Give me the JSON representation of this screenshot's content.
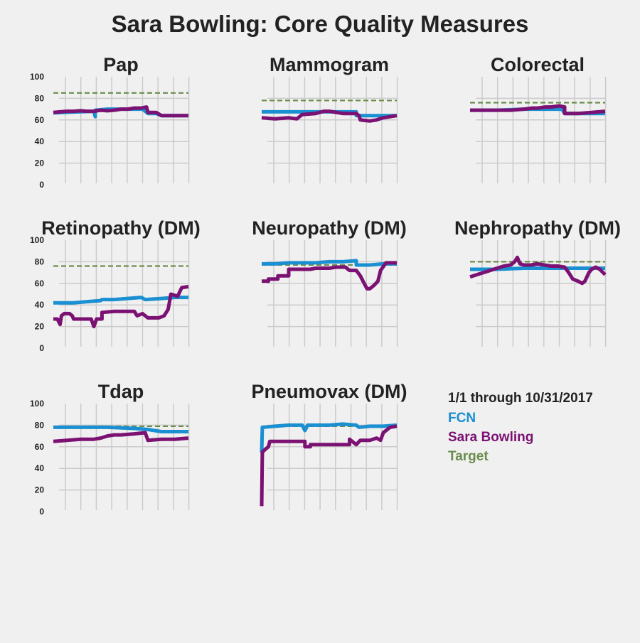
{
  "title": "Sara Bowling: Core Quality Measures",
  "legend": {
    "date_range": "1/1 through 10/31/2017",
    "entries": [
      {
        "label": "FCN",
        "color": "#1a8fd1"
      },
      {
        "label": "Sara Bowling",
        "color": "#7b1172"
      },
      {
        "label": "Target",
        "color": "#6b8c4c"
      }
    ]
  },
  "colors": {
    "fcn": "#1a8fd1",
    "sara": "#7b1172",
    "target": "#6b8c4c",
    "grid": "#cbcbcb",
    "background": "#f0f0f0"
  },
  "chart_data": [
    {
      "type": "line",
      "title": "Pap",
      "ylim": [
        0,
        100
      ],
      "yticks": [
        "0",
        "20",
        "40",
        "60",
        "80",
        "100"
      ],
      "xlim": [
        0,
        10
      ],
      "grid": true,
      "target": 85,
      "series": [
        {
          "name": "FCN",
          "x": [
            0,
            3.0,
            3.0,
            3.1,
            3.1,
            4.0,
            5.0,
            6.0,
            6.6,
            7.0,
            7.6,
            8.0,
            9.0,
            10.0
          ],
          "values": [
            66.5,
            68,
            68,
            63,
            69,
            70,
            70,
            70,
            70,
            66,
            66,
            64,
            64,
            64
          ]
        },
        {
          "name": "Sara Bowling",
          "x": [
            0,
            0.5,
            1.0,
            1.5,
            2.0,
            2.5,
            3.0,
            3.5,
            4.0,
            4.5,
            5.0,
            5.5,
            6.0,
            6.5,
            6.9,
            7.0,
            7.6,
            8.0,
            9.0,
            10.0
          ],
          "values": [
            67,
            67.5,
            68,
            68,
            68.5,
            68,
            68,
            69,
            68.5,
            69,
            70,
            70,
            71,
            71,
            72,
            67,
            67,
            64,
            64,
            64
          ]
        }
      ]
    },
    {
      "type": "line",
      "title": "Mammogram",
      "ylim": [
        0,
        100
      ],
      "yticks": [],
      "xlim": [
        0,
        10
      ],
      "grid": true,
      "target": 78,
      "series": [
        {
          "name": "FCN",
          "x": [
            0,
            7.0,
            7.0,
            10.0
          ],
          "values": [
            67.5,
            67.5,
            64,
            64
          ]
        },
        {
          "name": "Sara Bowling",
          "x": [
            0,
            1.0,
            2.0,
            2.6,
            3.0,
            4.0,
            4.6,
            5.0,
            6.0,
            7.0,
            7.2,
            7.3,
            8.0,
            8.5,
            9.0,
            10.0
          ],
          "values": [
            62,
            61,
            62,
            61,
            65,
            66,
            68,
            68,
            66,
            66,
            64,
            60,
            59,
            60,
            62,
            64
          ]
        }
      ]
    },
    {
      "type": "line",
      "title": "Colorectal",
      "ylim": [
        0,
        100
      ],
      "yticks": [],
      "xlim": [
        0,
        10
      ],
      "grid": true,
      "target": 76,
      "series": [
        {
          "name": "FCN",
          "x": [
            0,
            2.0,
            4.0,
            6.0,
            6.8,
            7.0,
            8.0,
            10.0
          ],
          "values": [
            69,
            69,
            70,
            70,
            70,
            66,
            66,
            66
          ]
        },
        {
          "name": "Sara Bowling",
          "x": [
            0,
            1.0,
            2.0,
            3.0,
            4.0,
            4.6,
            5.0,
            5.6,
            6.0,
            6.6,
            7.0,
            7.0,
            8.0,
            9.0,
            10.0
          ],
          "values": [
            69,
            69,
            69,
            69,
            70,
            71,
            71,
            72,
            72,
            73,
            72,
            66,
            66,
            67,
            68
          ]
        }
      ]
    },
    {
      "type": "line",
      "title": "Retinopathy (DM)",
      "ylim": [
        0,
        100
      ],
      "yticks": [
        "0",
        "20",
        "40",
        "60",
        "80",
        "100"
      ],
      "xlim": [
        0,
        10
      ],
      "grid": true,
      "target": 76,
      "series": [
        {
          "name": "FCN",
          "x": [
            0,
            1.5,
            2.5,
            3.5,
            3.6,
            4.5,
            5.5,
            6.5,
            6.8,
            8.0,
            9.0,
            10.0
          ],
          "values": [
            42,
            42,
            43,
            44,
            45,
            45,
            46,
            47,
            45,
            46,
            47,
            47
          ]
        },
        {
          "name": "Sara Bowling",
          "x": [
            0,
            0.3,
            0.5,
            0.6,
            0.8,
            1.2,
            1.4,
            1.5,
            2.5,
            2.8,
            3.0,
            3.2,
            3.6,
            3.6,
            4.5,
            5.5,
            6.0,
            6.2,
            6.6,
            7.0,
            7.4,
            7.8,
            8.2,
            8.5,
            8.7,
            9.2,
            9.5,
            10.0
          ],
          "values": [
            27,
            27,
            22,
            30,
            32,
            32,
            30,
            27,
            27,
            27,
            20,
            27,
            27,
            33,
            34,
            34,
            34,
            30,
            32,
            28,
            28,
            28,
            30,
            36,
            50,
            48,
            56,
            57
          ]
        }
      ]
    },
    {
      "type": "line",
      "title": "Neuropathy (DM)",
      "ylim": [
        0,
        100
      ],
      "yticks": [],
      "xlim": [
        0,
        10
      ],
      "grid": true,
      "target": 77,
      "series": [
        {
          "name": "FCN",
          "x": [
            0,
            1.0,
            2.0,
            3.0,
            4.0,
            5.0,
            6.0,
            7.0,
            7.0,
            7.7,
            8.0,
            9.0,
            10.0
          ],
          "values": [
            78,
            78,
            79,
            79,
            79,
            80,
            80,
            81,
            77,
            77,
            77,
            78,
            78
          ]
        },
        {
          "name": "Sara Bowling",
          "x": [
            0,
            0.5,
            0.5,
            1.2,
            1.2,
            2.0,
            2.0,
            3.0,
            3.6,
            4.0,
            5.0,
            5.5,
            6.0,
            6.2,
            6.5,
            7.0,
            7.3,
            7.5,
            7.8,
            8.0,
            8.3,
            8.6,
            8.8,
            9.2,
            10.0
          ],
          "values": [
            62,
            62,
            64,
            64,
            67,
            67,
            73,
            73,
            73,
            74,
            74,
            75,
            75,
            75,
            72,
            72,
            67,
            62,
            55,
            55,
            58,
            62,
            72,
            79,
            79
          ]
        }
      ]
    },
    {
      "type": "line",
      "title": "Nephropathy (DM)",
      "ylim": [
        0,
        100
      ],
      "yticks": [],
      "xlim": [
        0,
        10
      ],
      "grid": true,
      "target": 80,
      "series": [
        {
          "name": "FCN",
          "x": [
            0,
            2.0,
            4.0,
            6.0,
            8.0,
            9.0,
            10.0
          ],
          "values": [
            73,
            73,
            74,
            74,
            74,
            74,
            74
          ]
        },
        {
          "name": "Sara Bowling",
          "x": [
            0,
            0.5,
            1.0,
            1.5,
            2.0,
            2.5,
            3.0,
            3.3,
            3.5,
            3.7,
            4.0,
            4.5,
            5.0,
            5.5,
            6.0,
            6.5,
            7.0,
            7.3,
            7.6,
            8.0,
            8.3,
            8.5,
            8.8,
            9.0,
            9.3,
            9.6,
            10.0
          ],
          "values": [
            66,
            68,
            70,
            72,
            74,
            76,
            77,
            80,
            84,
            78,
            77,
            77,
            78,
            77,
            76,
            76,
            75,
            70,
            64,
            62,
            60,
            62,
            70,
            73,
            75,
            73,
            68
          ]
        }
      ]
    },
    {
      "type": "line",
      "title": "Tdap",
      "ylim": [
        0,
        100
      ],
      "yticks": [
        "0",
        "20",
        "40",
        "60",
        "80",
        "100"
      ],
      "xlim": [
        0,
        10
      ],
      "grid": true,
      "target": 79,
      "series": [
        {
          "name": "FCN",
          "x": [
            0,
            2.0,
            4.0,
            6.0,
            7.0,
            8.0,
            9.0,
            10.0
          ],
          "values": [
            78,
            78,
            78,
            77,
            76,
            74,
            74,
            74
          ]
        },
        {
          "name": "Sara Bowling",
          "x": [
            0,
            1.0,
            2.0,
            3.0,
            3.5,
            4.0,
            4.5,
            5.0,
            6.0,
            6.8,
            7.0,
            8.0,
            9.0,
            10.0
          ],
          "values": [
            65,
            66,
            67,
            67,
            68,
            70,
            71,
            71,
            72,
            73,
            66,
            67,
            67,
            68
          ]
        }
      ]
    },
    {
      "type": "line",
      "title": "Pneumovax (DM)",
      "ylim": [
        0,
        100
      ],
      "yticks": [],
      "xlim": [
        0,
        10
      ],
      "grid": true,
      "target": 79,
      "series": [
        {
          "name": "FCN",
          "x": [
            0,
            0.05,
            0.1,
            1.0,
            2.0,
            3.0,
            3.2,
            3.4,
            4.0,
            5.0,
            6.0,
            7.0,
            7.2,
            8.0,
            9.0,
            10.0
          ],
          "values": [
            55,
            78,
            78,
            79,
            80,
            80,
            75,
            80,
            80,
            80,
            81,
            80,
            78,
            79,
            79,
            80
          ]
        },
        {
          "name": "Sara Bowling",
          "x": [
            0,
            0.05,
            0.3,
            0.5,
            0.6,
            1.5,
            1.5,
            3.2,
            3.2,
            3.6,
            3.6,
            5.0,
            6.0,
            6.5,
            6.5,
            7.0,
            7.3,
            8.0,
            8.5,
            8.8,
            9.0,
            9.5,
            10.0
          ],
          "values": [
            5,
            55,
            58,
            60,
            65,
            65,
            65,
            65,
            60,
            60,
            62,
            62,
            62,
            62,
            67,
            62,
            66,
            66,
            68,
            66,
            73,
            78,
            79
          ]
        }
      ]
    }
  ]
}
